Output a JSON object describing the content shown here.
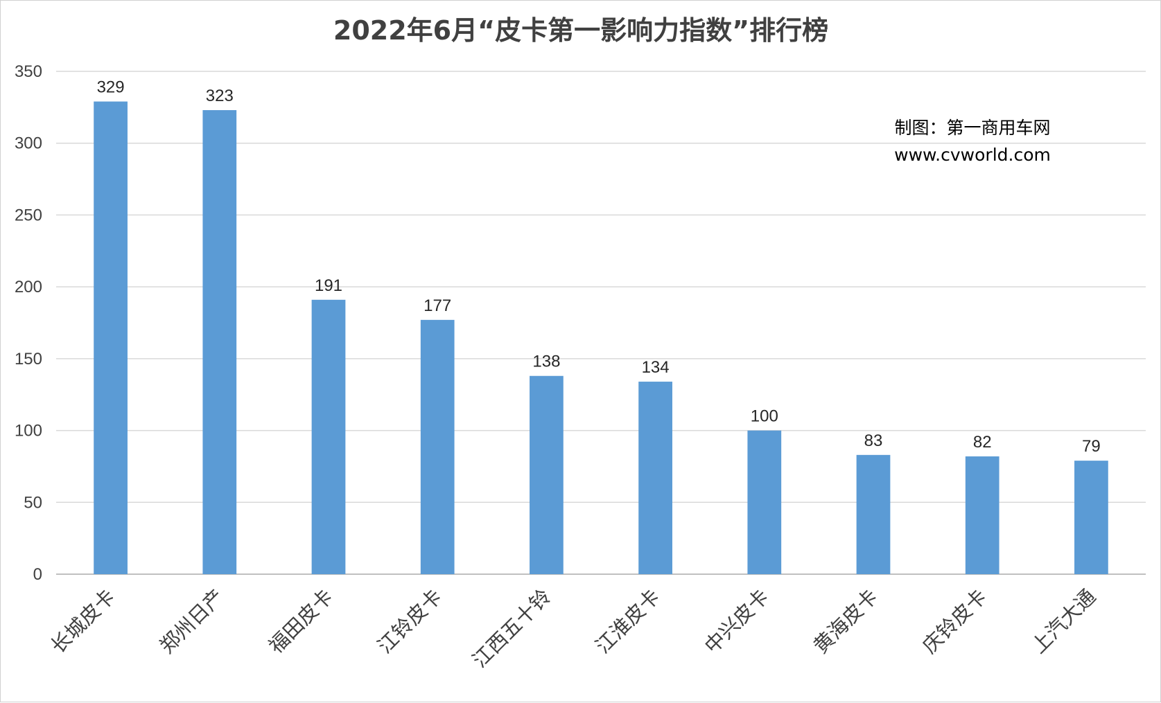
{
  "chart_data": {
    "type": "bar",
    "title": "2022年6月“皮卡第一影响力指数”排行榜",
    "categories": [
      "长城皮卡",
      "郑州日产",
      "福田皮卡",
      "江铃皮卡",
      "江西五十铃",
      "江淮皮卡",
      "中兴皮卡",
      "黄海皮卡",
      "庆铃皮卡",
      "上汽大通"
    ],
    "values": [
      329,
      323,
      191,
      177,
      138,
      134,
      100,
      83,
      82,
      79
    ],
    "ylim": [
      0,
      350
    ],
    "yticks": [
      0,
      50,
      100,
      150,
      200,
      250,
      300,
      350
    ],
    "xlabel": "",
    "ylabel": "",
    "grid": true,
    "legend": "none",
    "bar_color": "#5b9bd5",
    "data_labels": true
  },
  "annotation": {
    "line1": "制图：第一商用车网",
    "line2": "www.cvworld.com"
  }
}
